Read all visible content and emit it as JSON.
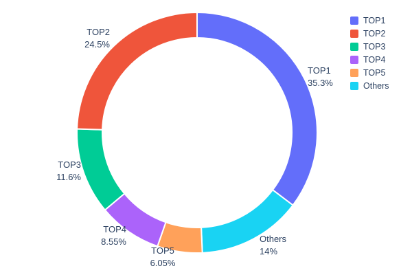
{
  "chart_data": {
    "type": "pie",
    "subtype": "donut",
    "hole": 0.79,
    "labels": [
      "TOP1",
      "TOP2",
      "TOP3",
      "TOP4",
      "TOP5",
      "Others"
    ],
    "values": [
      35.3,
      24.5,
      11.6,
      8.55,
      6.05,
      14
    ],
    "value_labels": [
      "35.3%",
      "24.5%",
      "11.6%",
      "8.55%",
      "6.05%",
      "14%"
    ],
    "colors": [
      "#636efa",
      "#ef553b",
      "#00cc96",
      "#ab63fa",
      "#ffa15a",
      "#19d3f3"
    ],
    "clockwise_order": [
      0,
      5,
      4,
      3,
      2,
      1
    ],
    "legend": [
      "TOP1",
      "TOP2",
      "TOP3",
      "TOP4",
      "TOP5",
      "Others"
    ],
    "legend_position": "top-right",
    "title": "",
    "background": "#ffffff",
    "text_color": "#2a3f5f"
  }
}
